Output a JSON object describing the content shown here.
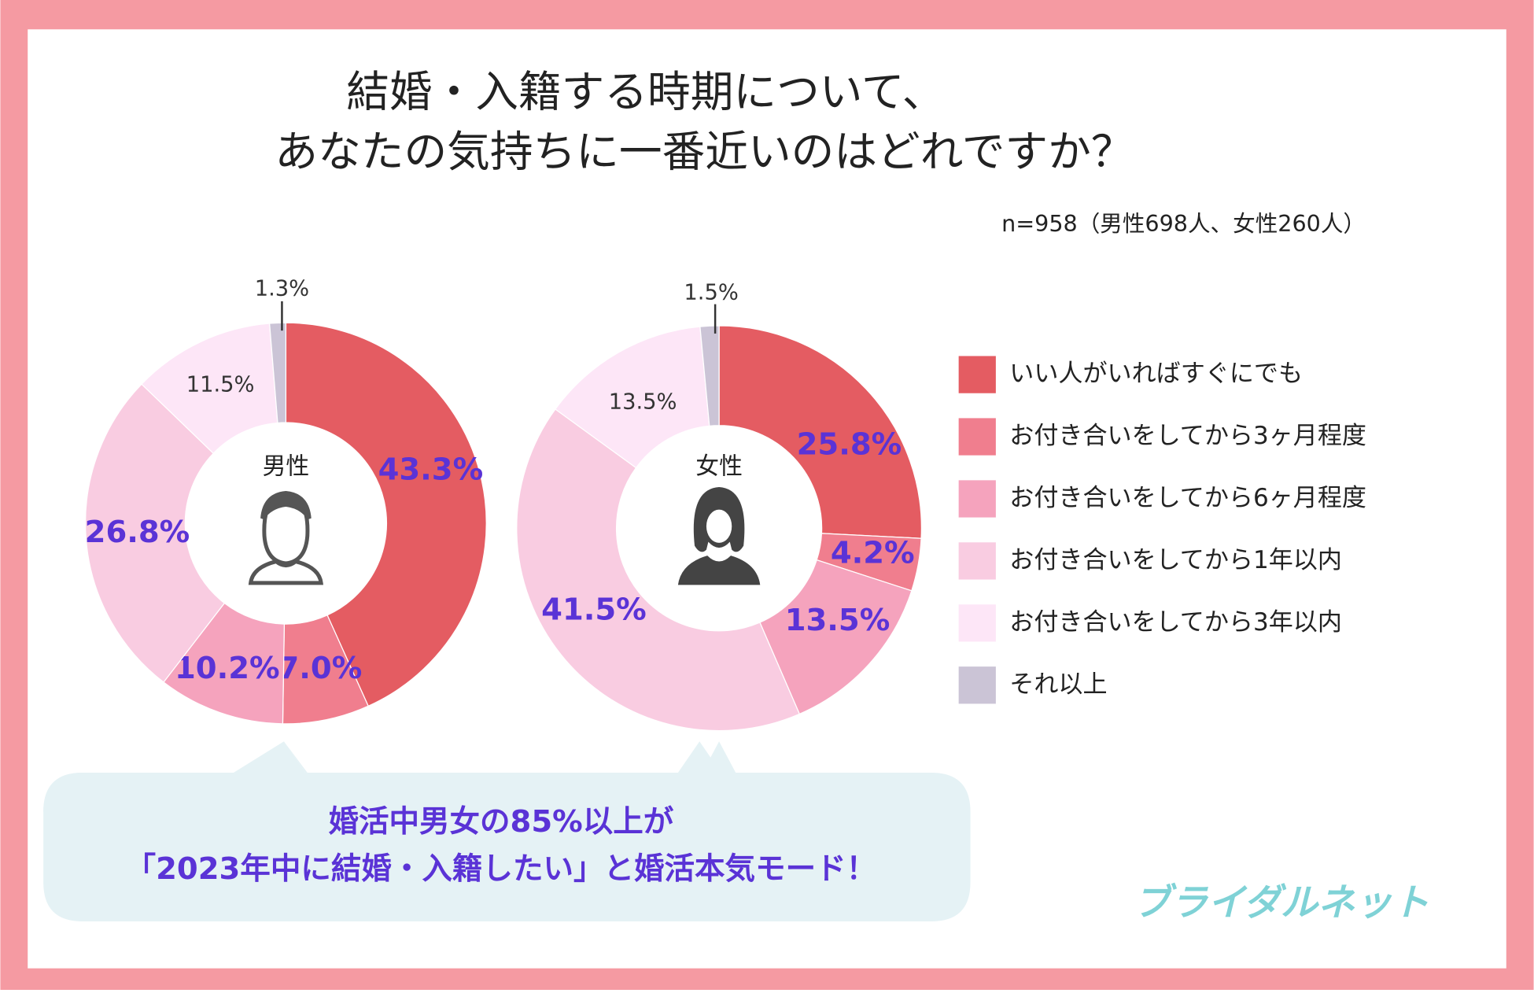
{
  "title": [
    "結婚・入籍する時期について、",
    "あなたの気持ちに一番近いのはどれですか？"
  ],
  "note": "n=958（男性698人、女性260人）",
  "legend": {
    "labels": [
      "いい人がいればすぐにでも",
      "お付き合いをしてから3ヶ月程度",
      "お付き合いをしてから6ヶ月程度",
      "お付き合いをしてから1年以内",
      "お付き合いをしてから3年以内",
      "それ以上"
    ],
    "colors": [
      "#e45c62",
      "#f07e8e",
      "#f5a3bd",
      "#f9cce1",
      "#fde6f7",
      "#cbc4d6"
    ]
  },
  "chart_data": [
    {
      "type": "pie",
      "title": "男性",
      "values": [
        43.3,
        7.0,
        10.2,
        26.8,
        11.5,
        1.3
      ],
      "value_labels": [
        "43.3%",
        "7.0%",
        "10.2%",
        "26.8%",
        "11.5%",
        "1.3%"
      ]
    },
    {
      "type": "pie",
      "title": "女性",
      "values": [
        25.8,
        4.2,
        13.5,
        41.5,
        13.5,
        1.5
      ],
      "value_labels": [
        "25.8%",
        "4.2%",
        "13.5%",
        "41.5%",
        "13.5%",
        "1.5%"
      ]
    }
  ],
  "callout": [
    "婚活中男女の85%以上が",
    "「2023年中に結婚・入籍したい」と婚活本気モード！"
  ],
  "logo": "ブライダルネット"
}
